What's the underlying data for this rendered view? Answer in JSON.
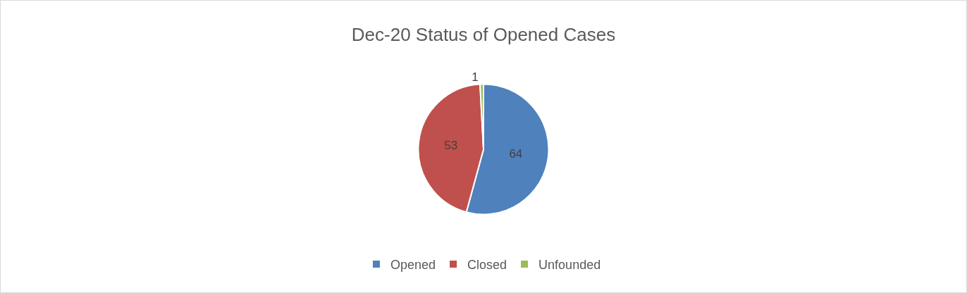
{
  "chart_data": {
    "type": "pie",
    "title": "Dec-20 Status of Opened Cases",
    "categories": [
      "Opened",
      "Closed",
      "Unfounded"
    ],
    "values": [
      64,
      53,
      1
    ],
    "colors": [
      "#4f81bd",
      "#c0504d",
      "#9bbb59"
    ],
    "data_labels": true,
    "legend": "bottom"
  }
}
